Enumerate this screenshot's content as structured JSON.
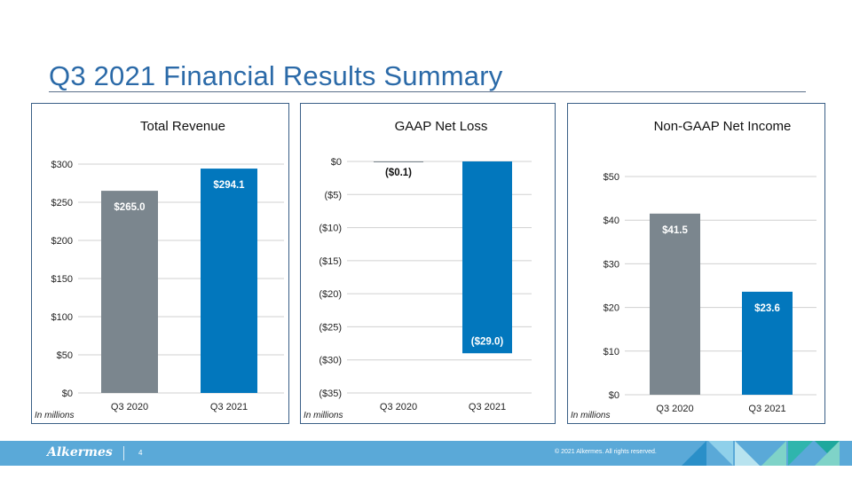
{
  "page": {
    "title": "Q3 2021 Financial Results Summary",
    "footer": {
      "logo_text": "Alkermes",
      "page_number": "4",
      "copyright": "© 2021 Alkermes. All rights reserved."
    }
  },
  "colors": {
    "title": "#2b6aa8",
    "bar_2020": "#7b868e",
    "bar_2021": "#0277bd",
    "panel_border": "#3a5f86",
    "footer": "#5aa9d8"
  },
  "chart_data": [
    {
      "type": "bar",
      "title": "Total Revenue",
      "categories": [
        "Q3 2020",
        "Q3 2021"
      ],
      "values": [
        265.0,
        294.1
      ],
      "value_labels": [
        "$265.0",
        "$294.1"
      ],
      "ylim": [
        0,
        300
      ],
      "yticks": [
        0,
        50,
        100,
        150,
        200,
        250,
        300
      ],
      "ytick_labels": [
        "$0",
        "$50",
        "$100",
        "$150",
        "$200",
        "$250",
        "$300"
      ],
      "unit_note": "In millions",
      "grid": true
    },
    {
      "type": "bar",
      "title": "GAAP Net Loss",
      "categories": [
        "Q3 2020",
        "Q3 2021"
      ],
      "values": [
        -0.1,
        -29.0
      ],
      "value_labels": [
        "($0.1)",
        "($29.0)"
      ],
      "ylim": [
        -35,
        0
      ],
      "yticks": [
        0,
        -5,
        -10,
        -15,
        -20,
        -25,
        -30,
        -35
      ],
      "ytick_labels": [
        "$0",
        "($5)",
        "($10)",
        "($15)",
        "($20)",
        "($25)",
        "($30)",
        "($35)"
      ],
      "unit_note": "In millions",
      "grid": true
    },
    {
      "type": "bar",
      "title": "Non-GAAP Net Income",
      "categories": [
        "Q3 2020",
        "Q3 2021"
      ],
      "values": [
        41.5,
        23.6
      ],
      "value_labels": [
        "$41.5",
        "$23.6"
      ],
      "ylim": [
        0,
        50
      ],
      "yticks": [
        0,
        10,
        20,
        30,
        40,
        50
      ],
      "ytick_labels": [
        "$0",
        "$10",
        "$20",
        "$30",
        "$40",
        "$50"
      ],
      "unit_note": "In millions",
      "grid": true
    }
  ]
}
